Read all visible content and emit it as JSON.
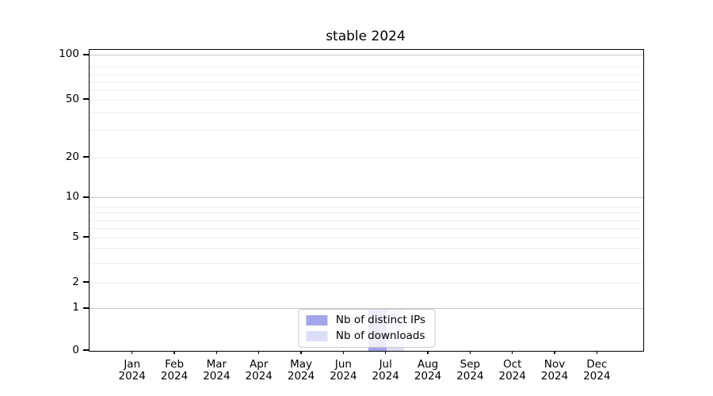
{
  "figure": {
    "background": "#ffffff",
    "text_color": "#000000"
  },
  "chart_data": {
    "type": "bar",
    "title": "stable 2024",
    "x_categories": [
      {
        "month": "Jan",
        "year": "2024"
      },
      {
        "month": "Feb",
        "year": "2024"
      },
      {
        "month": "Mar",
        "year": "2024"
      },
      {
        "month": "Apr",
        "year": "2024"
      },
      {
        "month": "May",
        "year": "2024"
      },
      {
        "month": "Jun",
        "year": "2024"
      },
      {
        "month": "Jul",
        "year": "2024"
      },
      {
        "month": "Aug",
        "year": "2024"
      },
      {
        "month": "Sep",
        "year": "2024"
      },
      {
        "month": "Oct",
        "year": "2024"
      },
      {
        "month": "Nov",
        "year": "2024"
      },
      {
        "month": "Dec",
        "year": "2024"
      }
    ],
    "series": [
      {
        "name": "Nb of distinct IPs",
        "color": "#a3a5ec",
        "values": [
          0,
          0,
          0,
          0,
          0,
          0,
          1,
          0,
          0,
          0,
          0,
          0
        ]
      },
      {
        "name": "Nb of downloads",
        "color": "#dcdef8",
        "values": [
          0,
          0,
          0,
          0,
          0,
          0,
          1,
          0,
          0,
          0,
          0,
          0
        ]
      }
    ],
    "y_axis": {
      "scale": "symlog",
      "range": [
        0,
        110
      ],
      "ticks": [
        {
          "v": 100,
          "label": "100",
          "f": 0.018,
          "major": true
        },
        {
          "v": 90,
          "f": 0.0553
        },
        {
          "v": 80,
          "f": 0.0816
        },
        {
          "v": 70,
          "f": 0.1053
        },
        {
          "v": 60,
          "f": 0.1342
        },
        {
          "v": 50,
          "label": "50",
          "f": 0.1658
        },
        {
          "v": 40,
          "f": 0.2105
        },
        {
          "v": 30,
          "f": 0.2658
        },
        {
          "v": 20,
          "label": "20",
          "f": 0.3579
        },
        {
          "v": 10,
          "label": "10",
          "f": 0.4921,
          "major": true
        },
        {
          "v": 9,
          "f": 0.5211
        },
        {
          "v": 8,
          "f": 0.5421
        },
        {
          "v": 7,
          "f": 0.5658
        },
        {
          "v": 6,
          "f": 0.5947
        },
        {
          "v": 5,
          "label": "5",
          "f": 0.6237
        },
        {
          "v": 4,
          "f": 0.6605
        },
        {
          "v": 3,
          "f": 0.7105
        },
        {
          "v": 2,
          "label": "2",
          "f": 0.7737
        },
        {
          "v": 1,
          "label": "1",
          "f": 0.8605,
          "major": true
        },
        {
          "v": 0,
          "label": "0",
          "f": 1.0,
          "gridline": false
        }
      ]
    },
    "x_axis": {
      "first_center_frac": 0.0783,
      "step_frac": 0.0763
    },
    "bar_width_frac": 0.0325,
    "grid": {
      "show": true,
      "major_color": "#c8c8c8",
      "minor_color": "#ededed"
    },
    "legend": {
      "position": "lower center"
    }
  }
}
